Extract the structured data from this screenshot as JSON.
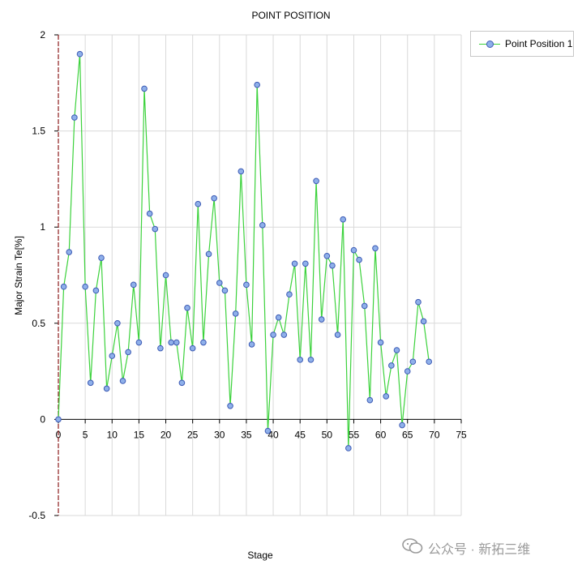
{
  "chart_data": {
    "type": "line",
    "title": "POINT POSITION",
    "xlabel": "Stage",
    "ylabel": "Major Strain Te[%]",
    "xlim": [
      0,
      75
    ],
    "ylim": [
      -0.5,
      2
    ],
    "xticks": [
      "0",
      "5",
      "10",
      "15",
      "20",
      "25",
      "30",
      "35",
      "40",
      "45",
      "50",
      "55",
      "60",
      "65",
      "70",
      "75"
    ],
    "yticks": [
      "-0.5",
      "0",
      "0.5",
      "1",
      "1.5",
      "2"
    ],
    "grid": true,
    "legend_position": "top-right",
    "colors": {
      "line": "#3cd23c",
      "marker_fill": "#8fb0ea",
      "marker_edge": "#3c5ab4",
      "grid": "#d9d9d9",
      "y_axis": "#8b1a1a"
    },
    "series": [
      {
        "name": "Point Position 1",
        "x": [
          0,
          1,
          2,
          3,
          4,
          5,
          6,
          7,
          8,
          9,
          10,
          11,
          12,
          13,
          14,
          15,
          16,
          17,
          18,
          19,
          20,
          21,
          22,
          23,
          24,
          25,
          26,
          27,
          28,
          29,
          30,
          31,
          32,
          33,
          34,
          35,
          36,
          37,
          38,
          39,
          40,
          41,
          42,
          43,
          44,
          45,
          46,
          47,
          48,
          49,
          50,
          51,
          52,
          53,
          54,
          55,
          56,
          57,
          58,
          59,
          60,
          61,
          62,
          63,
          64,
          65,
          66,
          67,
          68,
          69
        ],
        "y": [
          0,
          0.69,
          0.87,
          1.57,
          1.9,
          0.69,
          0.19,
          0.67,
          0.84,
          0.16,
          0.33,
          0.5,
          0.2,
          0.35,
          0.7,
          0.4,
          1.72,
          1.07,
          0.99,
          0.37,
          0.75,
          0.4,
          0.4,
          0.19,
          0.58,
          0.37,
          1.12,
          0.4,
          0.86,
          1.15,
          0.71,
          0.67,
          0.07,
          0.55,
          1.29,
          0.7,
          0.39,
          1.74,
          1.01,
          -0.06,
          0.44,
          0.53,
          0.44,
          0.65,
          0.81,
          0.31,
          0.81,
          0.31,
          1.24,
          0.52,
          0.85,
          0.8,
          0.44,
          1.04,
          -0.15,
          0.88,
          0.83,
          0.59,
          0.1,
          0.89,
          0.4,
          0.12,
          0.28,
          0.36,
          -0.03,
          0.25,
          0.3,
          0.61,
          0.51,
          0.3
        ]
      }
    ]
  },
  "watermark": {
    "text": "公众号 · 新拓三维"
  }
}
